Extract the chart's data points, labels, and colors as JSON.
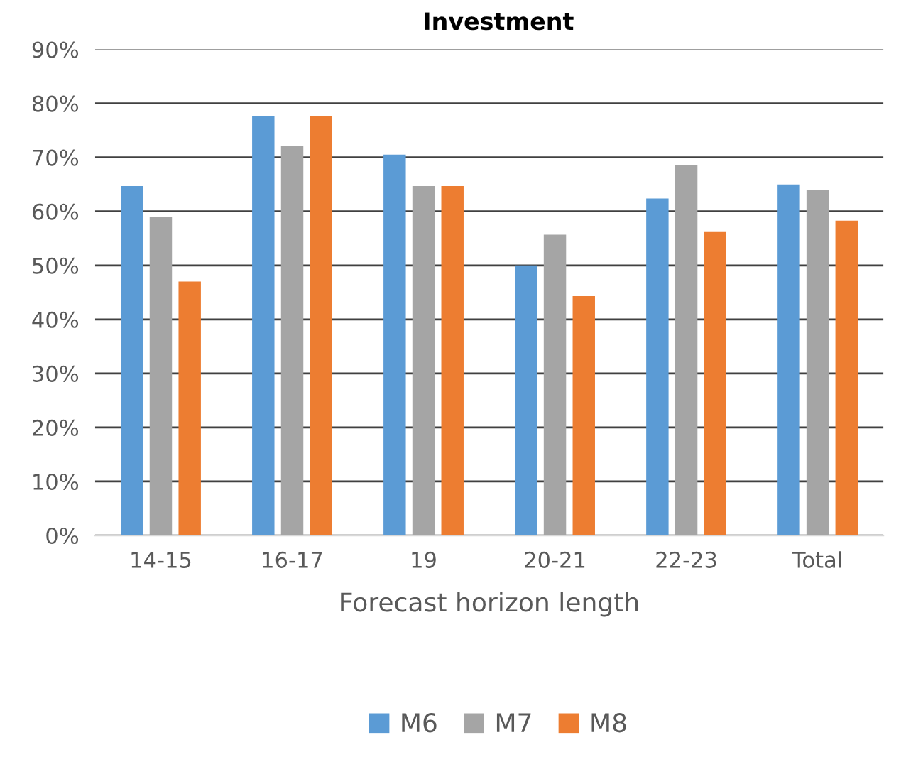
{
  "chart_data": {
    "type": "bar",
    "title": "Investment",
    "xlabel": "Forecast horizon length",
    "categories": [
      "14-15",
      "16-17",
      "19",
      "20-21",
      "22-23",
      "Total"
    ],
    "series": [
      {
        "name": "M6",
        "color": "#5b9bd5",
        "values": [
          64.7,
          77.6,
          70.5,
          50,
          62.4,
          65.0
        ]
      },
      {
        "name": "M7",
        "color": "#a5a5a5",
        "values": [
          58.9,
          72.1,
          64.7,
          55.7,
          68.6,
          64.0
        ]
      },
      {
        "name": "M8",
        "color": "#ed7d31",
        "values": [
          47,
          77.6,
          64.7,
          44.3,
          56.3,
          58.3
        ]
      }
    ],
    "ylim": [
      0,
      90
    ],
    "yticks": [
      {
        "value": 0,
        "label": "0%"
      },
      {
        "value": 10,
        "label": "10%"
      },
      {
        "value": 20,
        "label": "20%"
      },
      {
        "value": 30,
        "label": "30%"
      },
      {
        "value": 40,
        "label": "40%"
      },
      {
        "value": 50,
        "label": "50%"
      },
      {
        "value": 60,
        "label": "60%"
      },
      {
        "value": 70,
        "label": "70%"
      },
      {
        "value": 80,
        "label": "80%"
      },
      {
        "value": 90,
        "label": "90%"
      }
    ],
    "grid": "y",
    "legend": "bottom"
  }
}
